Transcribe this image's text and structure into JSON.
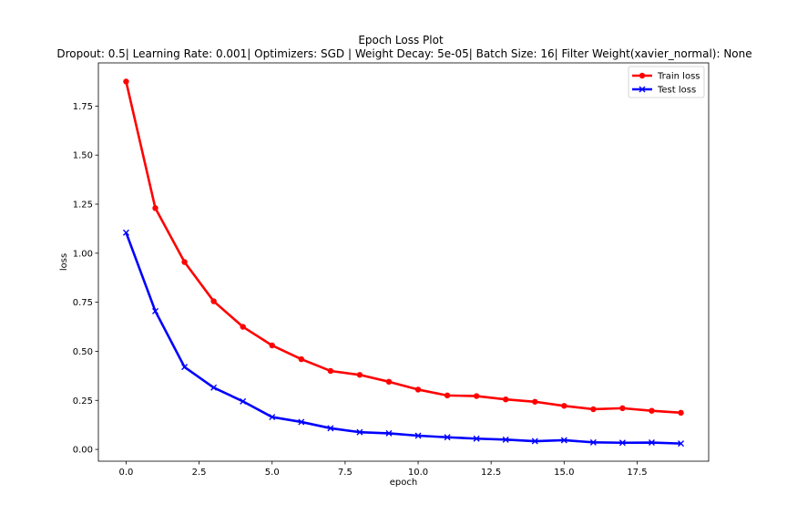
{
  "chart_data": {
    "type": "line",
    "title": "Epoch Loss Plot",
    "subtitle": "Dropout: 0.5| Learning Rate: 0.001| Optimizers: SGD | Weight Decay: 5e-05| Batch Size: 16| Filter Weight(xavier_normal): None",
    "xlabel": "epoch",
    "ylabel": "loss",
    "xlim": [
      -0.95,
      19.95
    ],
    "ylim": [
      -0.06,
      1.97
    ],
    "xticks": [
      0.0,
      2.5,
      5.0,
      7.5,
      10.0,
      12.5,
      15.0,
      17.5
    ],
    "xtick_labels": [
      "0.0",
      "2.5",
      "5.0",
      "7.5",
      "10.0",
      "12.5",
      "15.0",
      "17.5"
    ],
    "yticks": [
      0.0,
      0.25,
      0.5,
      0.75,
      1.0,
      1.25,
      1.5,
      1.75
    ],
    "ytick_labels": [
      "0.00",
      "0.25",
      "0.50",
      "0.75",
      "1.00",
      "1.25",
      "1.50",
      "1.75"
    ],
    "grid": false,
    "legend_position": "top-right",
    "x": [
      0,
      1,
      2,
      3,
      4,
      5,
      6,
      7,
      8,
      9,
      10,
      11,
      12,
      13,
      14,
      15,
      16,
      17,
      18,
      19
    ],
    "series": [
      {
        "name": "Train loss",
        "color": "#ff0000",
        "marker": "circle",
        "values": [
          1.875,
          1.23,
          0.955,
          0.755,
          0.625,
          0.53,
          0.46,
          0.4,
          0.38,
          0.345,
          0.305,
          0.275,
          0.272,
          0.255,
          0.243,
          0.222,
          0.205,
          0.21,
          0.197,
          0.187
        ]
      },
      {
        "name": "Test loss",
        "color": "#0000ff",
        "marker": "x",
        "values": [
          1.105,
          0.705,
          0.42,
          0.315,
          0.245,
          0.165,
          0.14,
          0.108,
          0.088,
          0.082,
          0.07,
          0.062,
          0.055,
          0.05,
          0.042,
          0.047,
          0.036,
          0.034,
          0.035,
          0.03
        ]
      }
    ]
  }
}
